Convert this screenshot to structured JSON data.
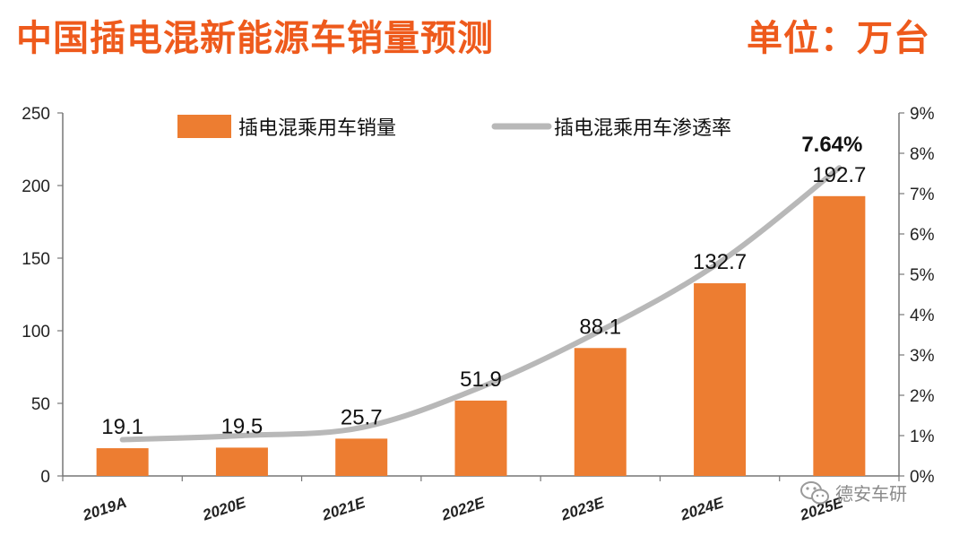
{
  "header": {
    "title": "中国插电混新能源车销量预测",
    "unit": "单位：万台"
  },
  "watermark": {
    "text": "德安车研",
    "icon": "wechat-icon"
  },
  "colors": {
    "title": "#ee5a1c",
    "bar": "#ed7d31",
    "line": "#b8b8b8"
  },
  "chart_data": {
    "type": "bar",
    "categories": [
      "2019A",
      "2020E",
      "2021E",
      "2022E",
      "2023E",
      "2024E",
      "2025E"
    ],
    "series": [
      {
        "name": "插电混乘用车销量",
        "type": "bar",
        "axis": "left",
        "values": [
          19.1,
          19.5,
          25.7,
          51.9,
          88.1,
          132.7,
          192.7
        ],
        "labels": [
          "19.1",
          "19.5",
          "25.7",
          "51.9",
          "88.1",
          "132.7",
          "192.7"
        ]
      },
      {
        "name": "插电混乘用车渗透率",
        "type": "line",
        "axis": "right",
        "values": [
          0.9,
          1.0,
          1.2,
          2.2,
          3.6,
          5.3,
          7.64
        ],
        "highlight_label": "7.64%"
      }
    ],
    "y_left": {
      "min": 0,
      "max": 250,
      "ticks": [
        "0",
        "50",
        "100",
        "150",
        "200",
        "250"
      ]
    },
    "y_right": {
      "min": 0,
      "max": 9,
      "ticks": [
        "0%",
        "1%",
        "2%",
        "3%",
        "4%",
        "5%",
        "6%",
        "7%",
        "8%",
        "9%"
      ]
    },
    "legend_position": "top",
    "grid": false
  }
}
